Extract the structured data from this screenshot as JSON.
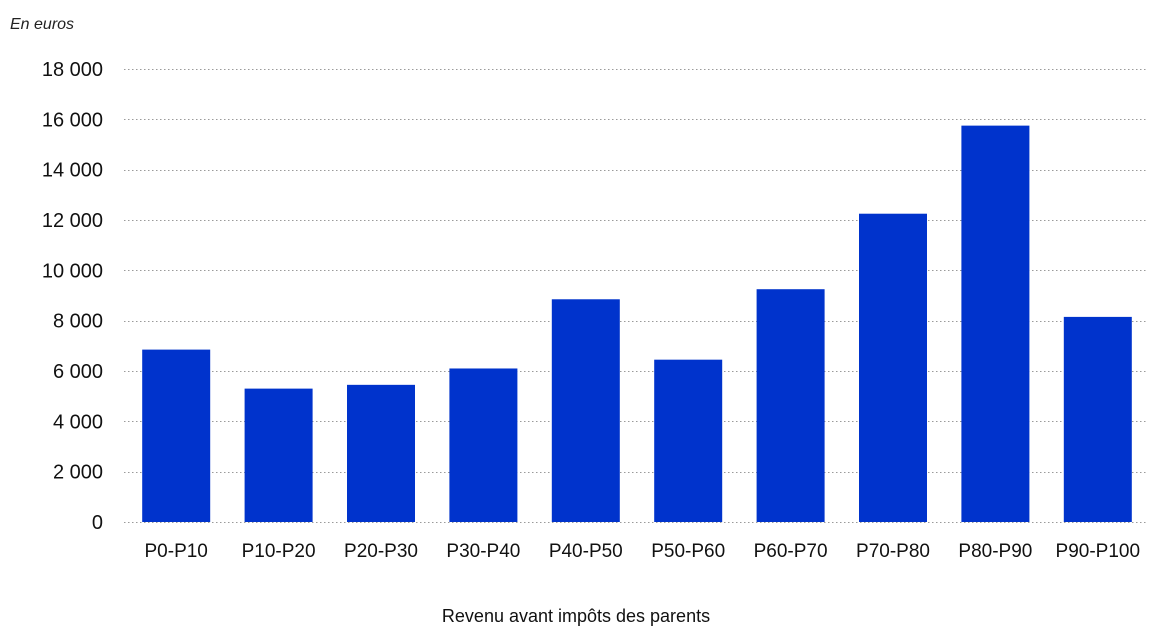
{
  "chart_data": {
    "type": "bar",
    "unit_label": "En euros",
    "xlabel": "Revenu avant  impôts des parents",
    "ylabel": "",
    "categories": [
      "P0-P10",
      "P10-P20",
      "P20-P30",
      "P30-P40",
      "P40-P50",
      "P50-P60",
      "P60-P70",
      "P70-P80",
      "P80-P90",
      "P90-P100"
    ],
    "values": [
      6850,
      5300,
      5450,
      6100,
      8850,
      6450,
      9250,
      12250,
      15750,
      8150
    ],
    "ylim": [
      0,
      18000
    ],
    "yticks": [
      0,
      2000,
      4000,
      6000,
      8000,
      10000,
      12000,
      14000,
      16000,
      18000
    ],
    "ytick_labels": [
      "0",
      "2 000",
      "4 000",
      "6 000",
      "8 000",
      "10 000",
      "12 000",
      "14 000",
      "16 000",
      "18 000"
    ],
    "grid": true,
    "legend": "none",
    "bar_color": "#0033cc"
  }
}
